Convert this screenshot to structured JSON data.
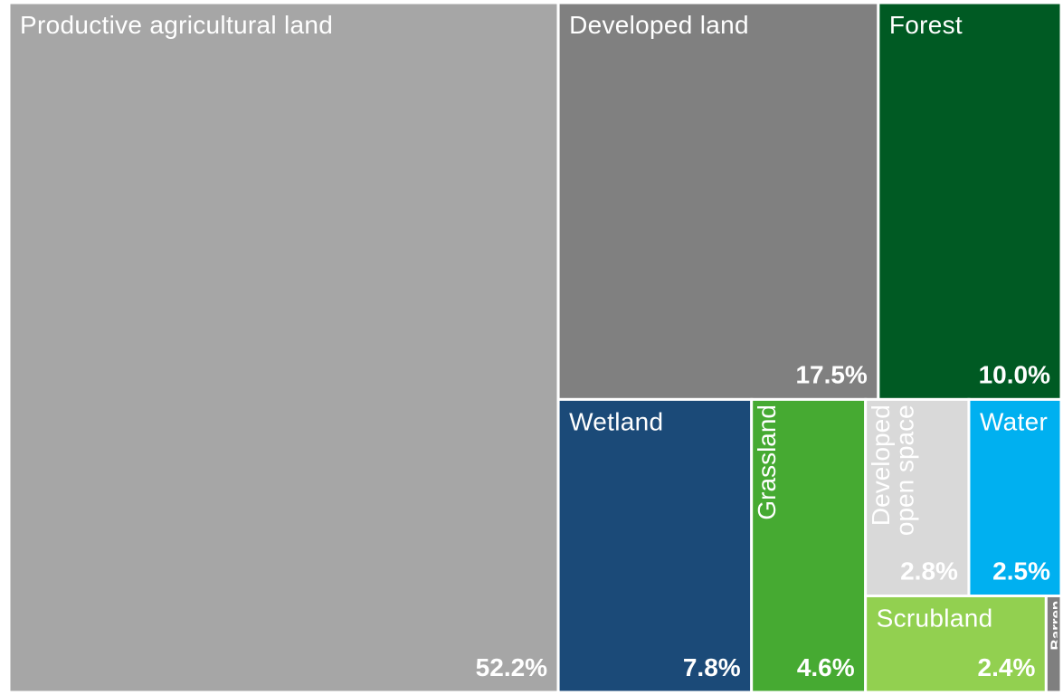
{
  "chart_data": {
    "type": "treemap",
    "categories": [
      "Productive agricultural land",
      "Developed land",
      "Forest",
      "Wetland",
      "Grassland",
      "Developed open space",
      "Water",
      "Scrubland",
      "Barren"
    ],
    "values": [
      52.2,
      17.5,
      10.0,
      7.8,
      4.6,
      2.8,
      2.5,
      2.4,
      0.2
    ],
    "value_labels": [
      "52.2%",
      "17.5%",
      "10.0%",
      "7.8%",
      "4.6%",
      "2.8%",
      "2.5%",
      "2.4%",
      null
    ],
    "colors": [
      "#a6a6a6",
      "#808080",
      "#005a23",
      "#1b4a78",
      "#46aa32",
      "#d9d9d9",
      "#00b0f0",
      "#92d050",
      "#7f7f7f"
    ]
  }
}
